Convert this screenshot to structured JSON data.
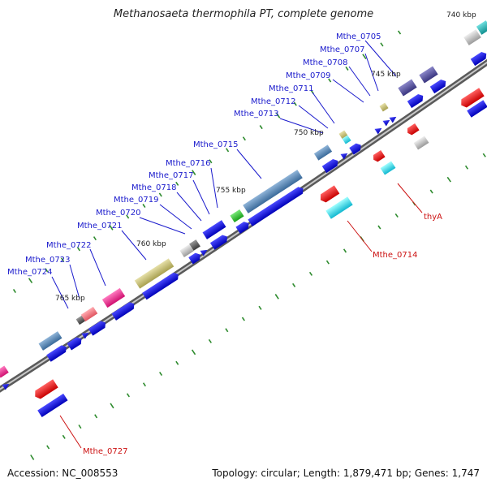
{
  "title": "Methanosaeta thermophila PT, complete genome",
  "accession_label": "Accession: NC_008553",
  "summary_label": "Topology: circular; Length: 1,879,471 bp; Genes: 1,747",
  "ruler_labels": [
    "740 kbp",
    "745 kbp",
    "750 kbp",
    "755 kbp",
    "760 kbp",
    "765 kbp"
  ],
  "gene_labels_forward": [
    "Mthe_0705",
    "Mthe_0707",
    "Mthe_0708",
    "Mthe_0709",
    "Mthe_0711",
    "Mthe_0712",
    "Mthe_0713",
    "Mthe_0715",
    "Mthe_0716",
    "Mthe_0717",
    "Mthe_0718",
    "Mthe_0719",
    "Mthe_0720",
    "Mthe_0721",
    "Mthe_0722",
    "Mthe_0723",
    "Mthe_0724"
  ],
  "gene_labels_reverse": [
    "thyA",
    "Mthe_0714",
    "Mthe_0727"
  ],
  "colors": {
    "forward_label": "#1a1acc",
    "reverse_label": "#cc1111",
    "cds": "#0a0aee",
    "backbone": "#7a7a7a",
    "tick": "#2e8b2e"
  }
}
